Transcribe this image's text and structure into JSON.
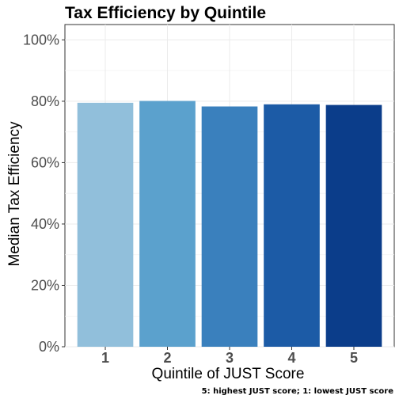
{
  "chart_data": {
    "type": "bar",
    "title": "Tax Efficiency by Quintile",
    "xlabel": "Quintile of JUST Score",
    "ylabel": "Median Tax Efficiency",
    "caption": "5: highest JUST score; 1: lowest JUST score",
    "categories": [
      "1",
      "2",
      "3",
      "4",
      "5"
    ],
    "values": [
      0.795,
      0.801,
      0.783,
      0.79,
      0.788
    ],
    "colors": [
      "#91bfdb",
      "#5ba1cd",
      "#3a80bd",
      "#1c5ba6",
      "#0b3d8a"
    ],
    "ylim": [
      0,
      1.05
    ],
    "yticks": [
      0,
      0.2,
      0.4,
      0.6,
      0.8,
      1.0
    ],
    "ytick_labels": [
      "0%",
      "20%",
      "40%",
      "60%",
      "80%",
      "100%"
    ],
    "grid": true,
    "legend": "none"
  }
}
